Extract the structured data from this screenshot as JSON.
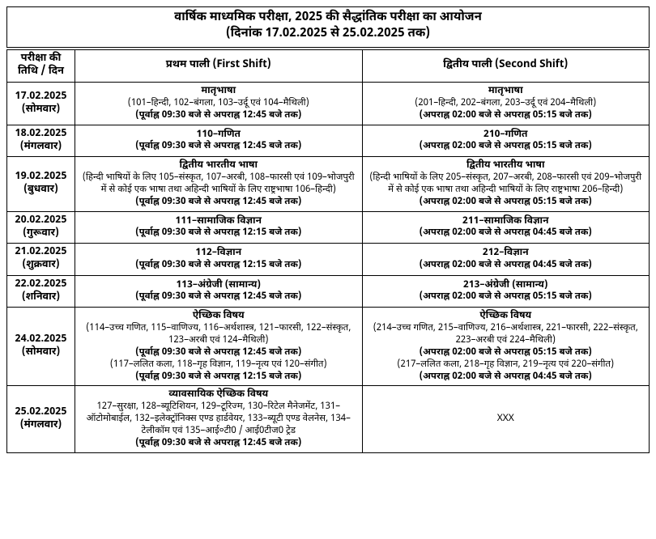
{
  "title_line1": "वार्षिक माध्यमिक परीक्षा, 2025 की सैद्धांतिक परीक्षा का आयोजन",
  "title_line2": "(दिनांक 17.02.2025 से 25.02.2025 तक)",
  "header_date": "परीक्षा की तिथि / दिन",
  "header_shift1": "प्रथम पाली (First Shift)",
  "header_shift2": "द्वितीय पाली (Second Shift)",
  "rows": [
    {
      "date": "17.02.2025",
      "day": "(सोमवार)",
      "s1_subject": "मातृभाषा",
      "s1_detail": "(101–हिन्दी, 102–बंगला, 103–उर्दू एवं 104–मैथिली)",
      "s1_time": "(पूर्वाह्न 09:30 बजे से अपराह्न 12:45 बजे तक)",
      "s2_subject": "मातृभाषा",
      "s2_detail": "(201–हिन्दी, 202–बंगला, 203–उर्दू एवं 204–मैथिली)",
      "s2_time": "(अपराह्न 02:00 बजे से अपराह्न 05:15 बजे तक)"
    },
    {
      "date": "18.02.2025",
      "day": "(मंगलवार)",
      "s1_subject": "110–गणित",
      "s1_time": "(पूर्वाह्न 09:30 बजे से अपराह्न 12:45 बजे तक)",
      "s2_subject": "210–गणित",
      "s2_time": "(अपराह्न 02:00 बजे से अपराह्न 05:15 बजे तक)"
    },
    {
      "date": "19.02.2025",
      "day": "(बुधवार)",
      "s1_subject": "द्वितीय भारतीय भाषा",
      "s1_detail": "(हिन्दी भाषियों के लिए 105–संस्कृत, 107–अरबी, 108–फारसी एवं 109–भोजपुरी में से कोई एक भाषा तथा अहिन्दी भाषियों के लिए राष्ट्रभाषा 106–हिन्दी)",
      "s1_time": "(पूर्वाह्न 09:30 बजे से अपराह्न 12:45 बजे तक)",
      "s2_subject": "द्वितीय भारतीय भाषा",
      "s2_detail": "(हिन्दी भाषियों के लिए 205–संस्कृत, 207–अरबी, 208–फारसी एवं 209–भोजपुरी में से कोई एक भाषा तथा अहिन्दी भाषियों के लिए राष्ट्रभाषा 206–हिन्दी)",
      "s2_time": "(अपराह्न 02:00 बजे से अपराह्न 05:15 बजे तक)"
    },
    {
      "date": "20.02.2025",
      "day": "(गुरूवार)",
      "s1_subject": "111–सामाजिक विज्ञान",
      "s1_time": "(पूर्वाह्न 09:30 बजे से अपराह्न 12:15 बजे तक)",
      "s2_subject": "211–सामाजिक विज्ञान",
      "s2_time": "(अपराह्न 02:00 बजे से अपराह्न 04:45 बजे तक)"
    },
    {
      "date": "21.02.2025",
      "day": "(शुक्रवार)",
      "s1_subject": "112–विज्ञान",
      "s1_time": "(पूर्वाह्न 09:30 बजे से अपराह्न 12:15 बजे तक)",
      "s2_subject": "212–विज्ञान",
      "s2_time": "(अपराह्न 02:00 बजे से अपराह्न 04:45 बजे तक)"
    },
    {
      "date": "22.02.2025",
      "day": "(शनिवार)",
      "s1_subject": "113–अंग्रेजी (सामान्य)",
      "s1_time": "(पूर्वाह्न 09:30 बजे से अपराह्न 12:45 बजे तक)",
      "s2_subject": "213–अंग्रेजी (सामान्य)",
      "s2_time": "(अपराह्न 02:00 बजे से अपराह्न 05:15 बजे तक)"
    },
    {
      "date": "24.02.2025",
      "day": "(सोमवार)",
      "s1_subject": "ऐच्छिक विषय",
      "s1_detail": "(114–उच्च गणित, 115–वाणिज्य, 116–अर्थशास्त्र, 121–फारसी, 122–संस्कृत, 123–अरबी एवं 124–मैथिली)",
      "s1_time": "(पूर्वाह्न 09:30 बजे से अपराह्न 12:45 बजे तक)",
      "s1_detail2": "(117–ललित कला, 118–गृह विज्ञान, 119–नृत्य एवं 120–संगीत)",
      "s1_time2": "(पूर्वाह्न 09:30 बजे से अपराह्न 12:15 बजे तक)",
      "s2_subject": "ऐच्छिक विषय",
      "s2_detail": "(214–उच्च गणित, 215–वाणिज्य, 216–अर्थशास्त्र, 221–फारसी, 222–संस्कृत, 223–अरबी एवं 224–मैथिली)",
      "s2_time": "(अपराह्न 02:00 बजे से अपराह्न 05:15 बजे तक)",
      "s2_detail2": "(217–ललित कला, 218–गृह विज्ञान, 219–नृत्य एवं 220–संगीत)",
      "s2_time2": "(अपराह्न 02:00 बजे से अपराह्न 04:45 बजे तक)"
    },
    {
      "date": "25.02.2025",
      "day": "(मंगलवार)",
      "s1_subject": "व्यावसायिक ऐच्छिक विषय",
      "s1_detail": "127–सुरक्षा, 128–ब्यूटिशियन, 129–टूरिज्म, 130–रिटेल मैनेजमेंट, 131–ऑटोमोबाईल, 132–इलेक्ट्रॉनिक्स एण्ड हार्डवेयर, 133–ब्यूटी एण्ड वेलनेस, 134–टेलीकॉम एवं 135–आई०टी0 / आई0टीज0 ट्रेड",
      "s1_time": "(पूर्वाह्न 09:30 बजे से अपराह्न 12:45 बजे तक)",
      "s2_xxx": "XXX"
    }
  ]
}
